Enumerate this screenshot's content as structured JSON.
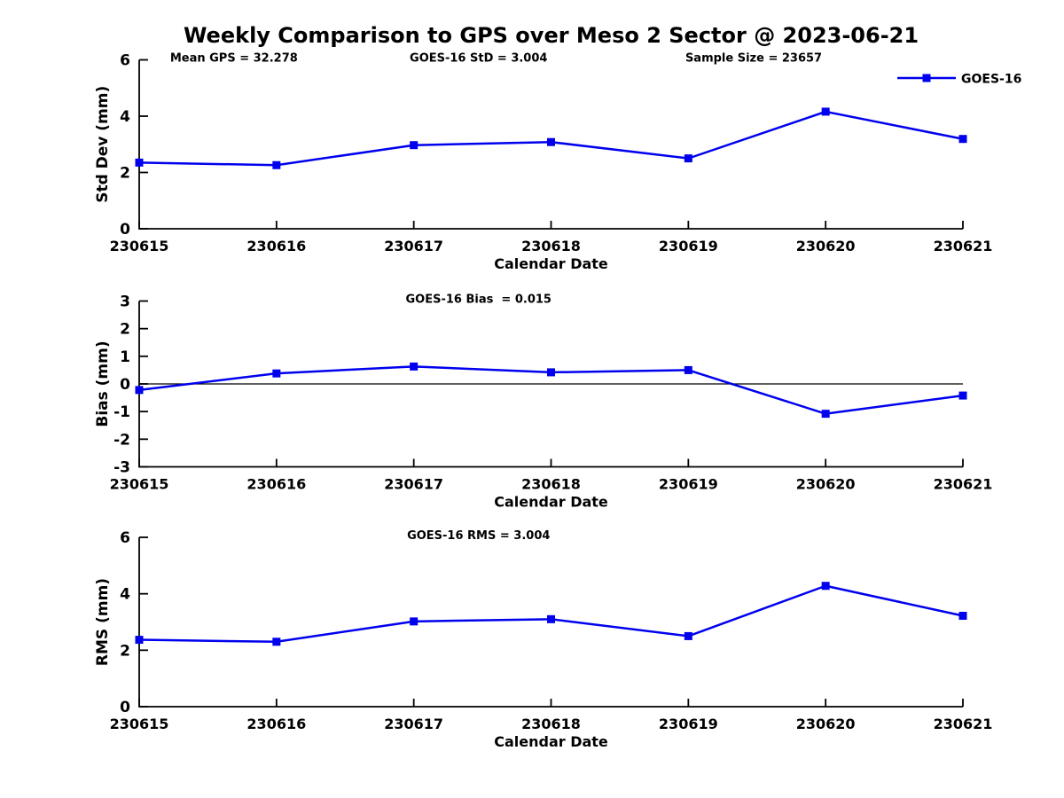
{
  "figure": {
    "title": "Weekly Comparison to GPS over Meso 2 Sector @ 2023-06-21"
  },
  "legend": {
    "label": "GOES-16"
  },
  "colors": {
    "series": "#0000EE",
    "axis": "#000000",
    "text": "#000000",
    "background": "#FFFFFF"
  },
  "chart_data": [
    {
      "id": "std-dev",
      "type": "line",
      "annotations": [
        {
          "text": "Mean GPS = 32.278",
          "fx": 0.115
        },
        {
          "text": "GOES-16 StD = 3.004",
          "fx": 0.412
        },
        {
          "text": "Sample Size = 23657",
          "fx": 0.746
        }
      ],
      "categories": [
        "230615",
        "230616",
        "230617",
        "230618",
        "230619",
        "230620",
        "230621"
      ],
      "series": [
        {
          "name": "GOES-16",
          "marker": "square",
          "values": [
            2.35,
            2.26,
            2.97,
            3.08,
            2.5,
            4.16,
            3.19
          ]
        }
      ],
      "xlabel": "Calendar Date",
      "ylabel": "Std Dev (mm)",
      "ylim": [
        0,
        6
      ],
      "yticks": [
        0,
        2,
        4,
        6
      ],
      "zero_line": false,
      "grid": false,
      "show_legend": true,
      "legend_position": "top-right"
    },
    {
      "id": "bias",
      "type": "line",
      "annotations": [
        {
          "text": "GOES-16 Bias  = 0.015",
          "fx": 0.412
        }
      ],
      "categories": [
        "230615",
        "230616",
        "230617",
        "230618",
        "230619",
        "230620",
        "230621"
      ],
      "series": [
        {
          "name": "GOES-16",
          "marker": "square",
          "values": [
            -0.22,
            0.38,
            0.63,
            0.42,
            0.5,
            -1.08,
            -0.42
          ]
        }
      ],
      "xlabel": "Calendar Date",
      "ylabel": "Bias (mm)",
      "ylim": [
        -3,
        3
      ],
      "yticks": [
        -3,
        -2,
        -1,
        0,
        1,
        2,
        3
      ],
      "zero_line": true,
      "grid": false,
      "show_legend": false,
      "legend_position": null
    },
    {
      "id": "rms",
      "type": "line",
      "annotations": [
        {
          "text": "GOES-16 RMS = 3.004",
          "fx": 0.412
        }
      ],
      "categories": [
        "230615",
        "230616",
        "230617",
        "230618",
        "230619",
        "230620",
        "230621"
      ],
      "series": [
        {
          "name": "GOES-16",
          "marker": "square",
          "values": [
            2.37,
            2.3,
            3.02,
            3.1,
            2.5,
            4.28,
            3.22
          ]
        }
      ],
      "xlabel": "Calendar Date",
      "ylabel": "RMS (mm)",
      "ylim": [
        0,
        6
      ],
      "yticks": [
        0,
        2,
        4,
        6
      ],
      "zero_line": false,
      "grid": false,
      "show_legend": false,
      "legend_position": null
    }
  ]
}
